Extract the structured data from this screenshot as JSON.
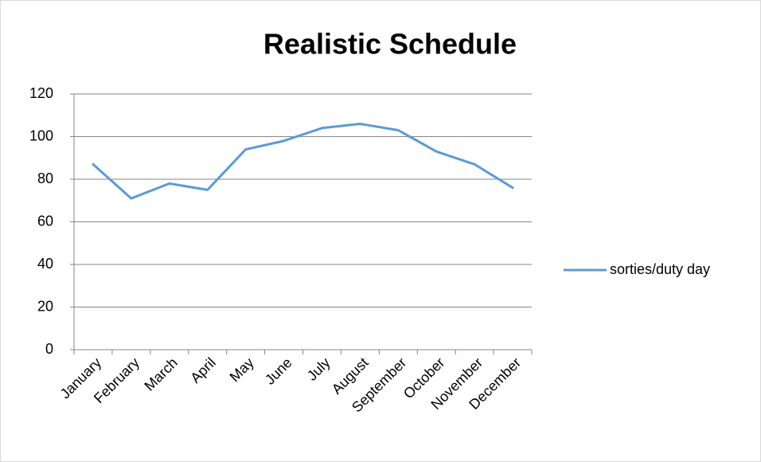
{
  "chart_data": {
    "type": "line",
    "title": "Realistic Schedule",
    "categories": [
      "January",
      "February",
      "March",
      "April",
      "May",
      "June",
      "July",
      "August",
      "September",
      "October",
      "November",
      "December"
    ],
    "series": [
      {
        "name": "sorties/duty day",
        "color": "#5b9bd5",
        "values": [
          87,
          71,
          78,
          75,
          94,
          98,
          104,
          106,
          103,
          93,
          87,
          76
        ]
      }
    ],
    "ylim": [
      0,
      120
    ],
    "yticks": [
      0,
      20,
      40,
      60,
      80,
      100,
      120
    ],
    "grid": true,
    "legend": "right"
  }
}
